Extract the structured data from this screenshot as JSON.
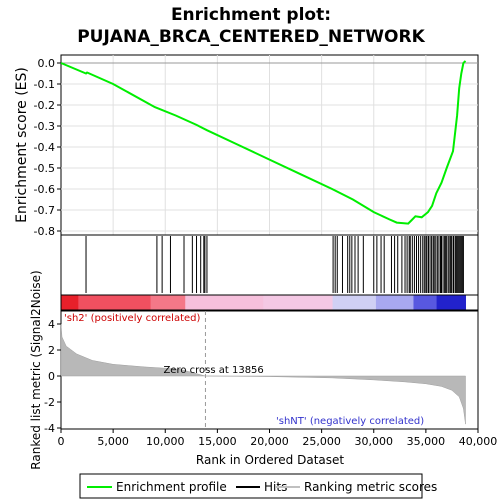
{
  "chart_data": {
    "type": "line",
    "title_line1": "Enrichment plot:",
    "title_line2": "PUJANA_BRCA_CENTERED_NETWORK",
    "es_ylabel": "Enrichment score (ES)",
    "metric_ylabel": "Ranked list metric (Signal2Noise)",
    "xlabel": "Rank in Ordered Dataset",
    "xlim": [
      0,
      40000
    ],
    "es_ylim": [
      -0.8,
      0.0
    ],
    "metric_ylim": [
      -4,
      4
    ],
    "x_ticks": [
      0,
      5000,
      10000,
      15000,
      20000,
      25000,
      30000,
      35000,
      40000
    ],
    "x_tick_labels": [
      "0",
      "5,000",
      "10,000",
      "15,000",
      "20,000",
      "25,000",
      "30,000",
      "35,000",
      "40,000"
    ],
    "es_ticks": [
      0.0,
      -0.1,
      -0.2,
      -0.3,
      -0.4,
      -0.5,
      -0.6,
      -0.7,
      -0.8
    ],
    "es_tick_labels": [
      "0.0",
      "-0.1",
      "-0.2",
      "-0.3",
      "-0.4",
      "-0.5",
      "-0.6",
      "-0.7",
      "-0.8"
    ],
    "metric_ticks": [
      4,
      2,
      0,
      -2,
      -4
    ],
    "metric_tick_labels": [
      "4",
      "2",
      "0",
      "-2",
      "-4"
    ],
    "zero_cross": 13856,
    "zero_cross_label": "Zero cross at 13856",
    "pos_label": "'sh2' (positively correlated)",
    "neg_label": "'shNT' (negatively correlated)",
    "es_color": "#00ee00",
    "es_curve": [
      [
        0,
        0.0
      ],
      [
        2400,
        -0.05
      ],
      [
        2500,
        -0.045
      ],
      [
        5000,
        -0.1
      ],
      [
        9000,
        -0.21
      ],
      [
        11000,
        -0.25
      ],
      [
        13000,
        -0.295
      ],
      [
        14000,
        -0.32
      ],
      [
        17000,
        -0.39
      ],
      [
        20000,
        -0.46
      ],
      [
        23000,
        -0.53
      ],
      [
        26000,
        -0.6
      ],
      [
        28000,
        -0.65
      ],
      [
        30000,
        -0.71
      ],
      [
        31500,
        -0.745
      ],
      [
        32200,
        -0.76
      ],
      [
        33300,
        -0.765
      ],
      [
        33600,
        -0.75
      ],
      [
        34000,
        -0.73
      ],
      [
        34600,
        -0.735
      ],
      [
        35200,
        -0.71
      ],
      [
        35600,
        -0.68
      ],
      [
        36000,
        -0.62
      ],
      [
        36500,
        -0.57
      ],
      [
        37000,
        -0.5
      ],
      [
        37600,
        -0.42
      ],
      [
        38000,
        -0.25
      ],
      [
        38200,
        -0.12
      ],
      [
        38400,
        -0.05
      ],
      [
        38600,
        0.0
      ],
      [
        38800,
        0.01
      ]
    ],
    "metric_curve": [
      [
        0,
        4.0
      ],
      [
        100,
        3.0
      ],
      [
        500,
        2.3
      ],
      [
        1500,
        1.7
      ],
      [
        3000,
        1.2
      ],
      [
        5000,
        0.9
      ],
      [
        8000,
        0.7
      ],
      [
        10000,
        0.6
      ],
      [
        11500,
        0.5
      ],
      [
        13856,
        0.0
      ],
      [
        20000,
        -0.05
      ],
      [
        26000,
        -0.15
      ],
      [
        30000,
        -0.3
      ],
      [
        33000,
        -0.45
      ],
      [
        35000,
        -0.6
      ],
      [
        36500,
        -0.8
      ],
      [
        37500,
        -1.1
      ],
      [
        38200,
        -1.6
      ],
      [
        38600,
        -2.5
      ],
      [
        38800,
        -3.7
      ]
    ],
    "hits": [
      2400,
      9200,
      9700,
      10500,
      11800,
      12600,
      13000,
      13400,
      13700,
      13800,
      14000,
      26100,
      26300,
      26500,
      27000,
      27500,
      27700,
      27900,
      28200,
      28500,
      29000,
      30000,
      30300,
      30700,
      31000,
      31700,
      32000,
      32300,
      32700,
      33000,
      33200,
      33400,
      33500,
      33700,
      33900,
      34100,
      34300,
      34500,
      34700,
      34850,
      35000,
      35100,
      35250,
      35400,
      35550,
      35700,
      35800,
      35950,
      36100,
      36250,
      36400,
      36500,
      36650,
      36800,
      36900,
      37000,
      37150,
      37300,
      37400,
      37500,
      37650,
      37800,
      37900,
      38000,
      38100,
      38200,
      38300,
      38400,
      38500,
      38600
    ]
  },
  "legend": {
    "items": [
      {
        "label": "Enrichment profile",
        "color": "#00ee00"
      },
      {
        "label": "Hits",
        "color": "#000000"
      },
      {
        "label": "Ranking metric scores",
        "color": "#c0c0c0"
      }
    ]
  }
}
